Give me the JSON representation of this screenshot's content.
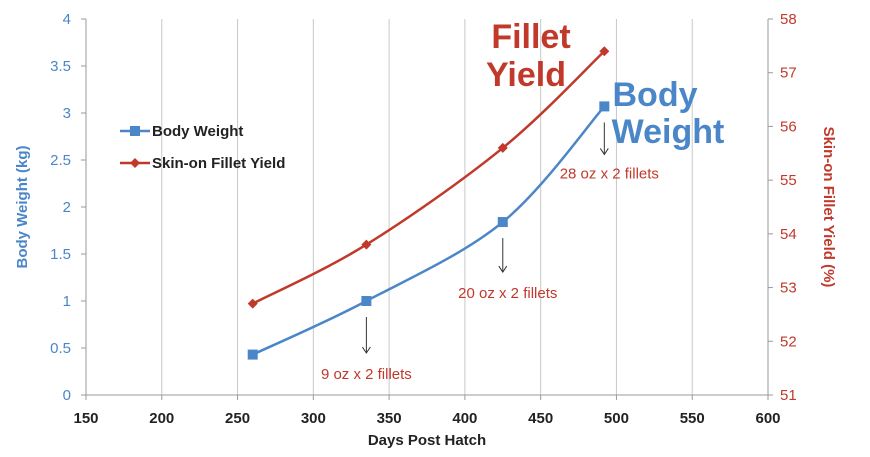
{
  "chart_data": {
    "type": "line",
    "xlabel": "Days Post Hatch",
    "ylabel_left": "Body Weight (kg)",
    "ylabel_right": "Skin-on Fillet Yield (%)",
    "xlim": [
      150,
      600
    ],
    "x_ticks": [
      150,
      200,
      250,
      300,
      350,
      400,
      450,
      500,
      550,
      600
    ],
    "ylim_left": [
      0,
      4
    ],
    "y_ticks_left": [
      0,
      0.5,
      1,
      1.5,
      2,
      2.5,
      3,
      3.5,
      4
    ],
    "ylim_right": [
      51,
      58
    ],
    "y_ticks_right": [
      51,
      52,
      53,
      54,
      55,
      56,
      57,
      58
    ],
    "legend_position": "left",
    "grid": "vertical",
    "series": [
      {
        "name": "Body Weight",
        "axis": "left",
        "color": "#4a86c8",
        "marker": "square",
        "points": [
          [
            260,
            0.43
          ],
          [
            335,
            1.0
          ],
          [
            425,
            1.84
          ],
          [
            492,
            3.07
          ]
        ]
      },
      {
        "name": "Skin-on Fillet Yield",
        "axis": "right",
        "color": "#c0392b",
        "marker": "diamond",
        "points": [
          [
            260,
            52.7
          ],
          [
            335,
            53.8
          ],
          [
            425,
            55.6
          ],
          [
            492,
            57.4
          ]
        ]
      }
    ],
    "big_labels": {
      "fillet_line1": "Fillet",
      "fillet_line2": "Yield",
      "body_line1": "Body",
      "body_line2": "Weight"
    },
    "annotations": [
      {
        "text": "9 oz  x 2 fillets",
        "x": 335,
        "y": 1.0
      },
      {
        "text": "20 oz x 2 fillets",
        "x": 425,
        "y": 1.84
      },
      {
        "text": "28 oz x 2 fillets",
        "x": 492,
        "y": 3.07
      }
    ]
  }
}
